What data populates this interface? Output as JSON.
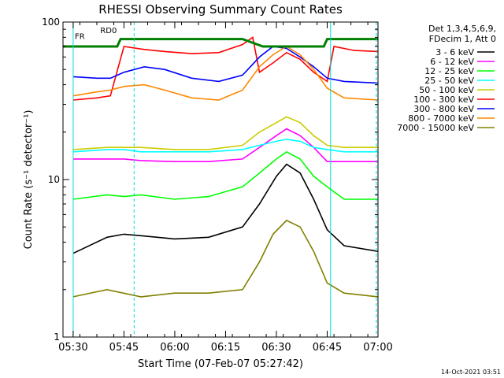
{
  "chart_data": {
    "type": "line",
    "title": "RHESSI Observing Summary Count Rates",
    "xlabel": "Start Time (07-Feb-07 05:27:42)",
    "ylabel": "Count Rate (s⁻¹ detector⁻¹)",
    "yscale": "log",
    "ylim": [
      1,
      100
    ],
    "xlim_minutes": [
      2,
      95
    ],
    "x_ticks": [
      {
        "minute": 5,
        "label": "05:30"
      },
      {
        "minute": 20,
        "label": "05:45"
      },
      {
        "minute": 35,
        "label": "06:00"
      },
      {
        "minute": 50,
        "label": "06:15"
      },
      {
        "minute": 65,
        "label": "06:30"
      },
      {
        "minute": 80,
        "label": "06:45"
      },
      {
        "minute": 95,
        "label": "07:00"
      }
    ],
    "y_ticks": [
      {
        "value": 1,
        "label": "1"
      },
      {
        "value": 10,
        "label": "10"
      },
      {
        "value": 100,
        "label": "100"
      }
    ],
    "legend": {
      "placement": "right",
      "header": [
        "Det 1,3,4,5,6,9,",
        "FDecim 1, Att 0"
      ]
    },
    "annotations": [
      {
        "text": "RD0",
        "minute": 13,
        "value": 85
      },
      {
        "text": "FR",
        "minute": 5.5,
        "value": 78
      }
    ],
    "night_boundaries_minutes": [
      5,
      81
    ],
    "saa_boundaries_minutes": [
      23,
      99
    ],
    "series": [
      {
        "name": "3 - 6 keV",
        "color": "#000000",
        "x": [
          5,
          15,
          20,
          25,
          35,
          45,
          55,
          60,
          65,
          68,
          72,
          76,
          80,
          85,
          95
        ],
        "values": [
          3.4,
          4.3,
          4.5,
          4.4,
          4.2,
          4.3,
          5.0,
          7.0,
          10.5,
          12.5,
          11.0,
          7.5,
          4.8,
          3.8,
          3.5
        ]
      },
      {
        "name": "6 - 12 keV",
        "color": "#ff00ff",
        "x": [
          5,
          15,
          20,
          25,
          35,
          45,
          55,
          60,
          65,
          68,
          72,
          76,
          80,
          85,
          95
        ],
        "values": [
          13.5,
          13.5,
          13.5,
          13.2,
          13.0,
          13.0,
          13.5,
          16.0,
          19.0,
          21.0,
          19.0,
          16.0,
          13.0,
          13.0,
          13.0
        ]
      },
      {
        "name": "12 - 25 keV",
        "color": "#00ff00",
        "x": [
          5,
          15,
          20,
          25,
          35,
          45,
          55,
          60,
          65,
          68,
          72,
          76,
          80,
          85,
          95
        ],
        "values": [
          7.5,
          8.0,
          7.8,
          8.0,
          7.5,
          7.8,
          9.0,
          11.0,
          13.5,
          15.0,
          13.5,
          10.5,
          9.0,
          7.5,
          7.5
        ]
      },
      {
        "name": "25 - 50 keV",
        "color": "#00ffff",
        "x": [
          5,
          15,
          20,
          25,
          35,
          45,
          55,
          60,
          65,
          68,
          72,
          76,
          80,
          85,
          95
        ],
        "values": [
          15.0,
          15.5,
          15.5,
          15.0,
          15.0,
          15.0,
          15.5,
          16.5,
          17.5,
          18.0,
          17.5,
          16.0,
          15.5,
          15.0,
          15.0
        ]
      },
      {
        "name": "50 - 100 keV",
        "color": "#cccc00",
        "x": [
          5,
          15,
          20,
          25,
          35,
          45,
          55,
          60,
          65,
          68,
          72,
          76,
          80,
          85,
          95
        ],
        "values": [
          15.5,
          16.0,
          16.0,
          16.0,
          15.5,
          15.5,
          16.5,
          20.0,
          23.0,
          25.0,
          23.0,
          19.0,
          16.5,
          16.0,
          16.0
        ]
      },
      {
        "name": "100 - 300 keV",
        "color": "#ff0000",
        "x": [
          5,
          12,
          16,
          20,
          26,
          32,
          40,
          48,
          55,
          58,
          60,
          64,
          68,
          72,
          76,
          80,
          82,
          88,
          95
        ],
        "values": [
          32,
          33,
          34,
          70,
          67,
          65,
          63,
          64,
          72,
          80,
          48,
          55,
          64,
          58,
          48,
          42,
          70,
          66,
          65
        ]
      },
      {
        "name": "300 - 800 keV",
        "color": "#0000ff",
        "x": [
          5,
          12,
          16,
          20,
          26,
          32,
          40,
          48,
          55,
          60,
          64,
          68,
          72,
          76,
          80,
          85,
          95
        ],
        "values": [
          45,
          44,
          44,
          48,
          52,
          50,
          44,
          42,
          46,
          60,
          70,
          68,
          60,
          52,
          44,
          42,
          41
        ]
      },
      {
        "name": "800 - 7000 keV",
        "color": "#ff8800",
        "x": [
          5,
          12,
          16,
          20,
          26,
          32,
          40,
          48,
          55,
          60,
          64,
          68,
          72,
          76,
          80,
          85,
          95
        ],
        "values": [
          34,
          36,
          37,
          39,
          40,
          37,
          33,
          32,
          37,
          52,
          62,
          70,
          62,
          50,
          38,
          33,
          32
        ]
      },
      {
        "name": "7000 - 15000 keV",
        "color": "#808000",
        "x": [
          5,
          15,
          25,
          35,
          45,
          55,
          60,
          64,
          68,
          72,
          76,
          80,
          85,
          95
        ],
        "values": [
          1.8,
          2.0,
          1.8,
          1.9,
          1.9,
          2.0,
          3.0,
          4.5,
          5.5,
          5.0,
          3.5,
          2.2,
          1.9,
          1.8
        ]
      },
      {
        "name": "",
        "color": "#008000",
        "x": [
          2,
          18,
          19,
          55,
          61,
          79,
          80,
          98
        ],
        "values": [
          70,
          70,
          78,
          78,
          70,
          70,
          78,
          78
        ]
      }
    ]
  },
  "timestamp": "14-Oct-2021 03:51"
}
